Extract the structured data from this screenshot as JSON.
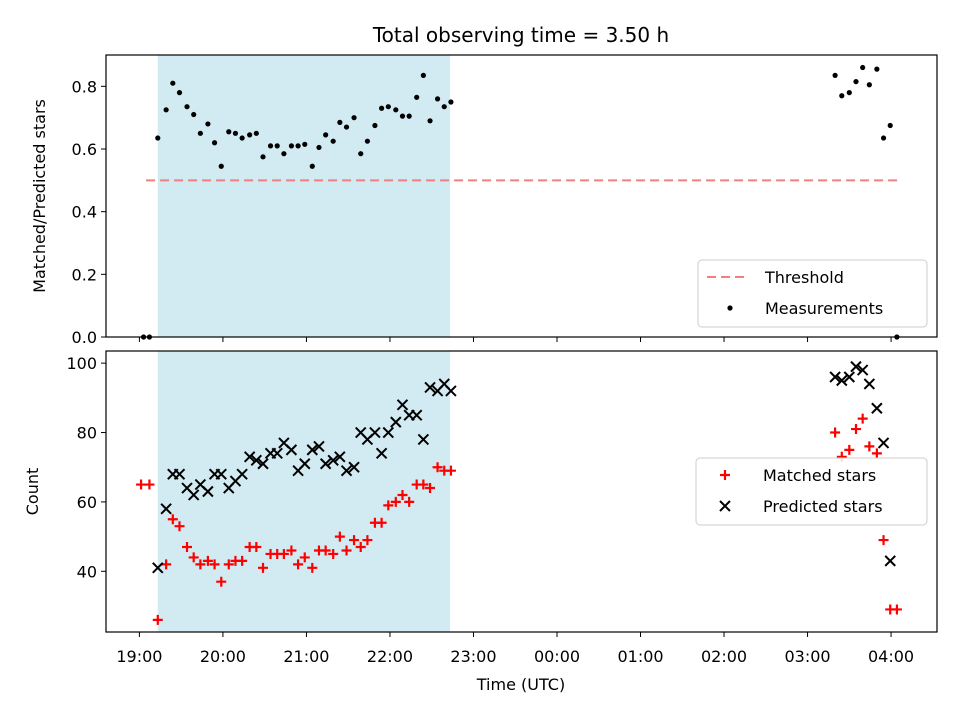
{
  "chart_data": {
    "type": "scatter",
    "title": "Total observing time = 3.50 h",
    "xlabel": "Time (UTC)",
    "x_ticks": [
      "19:00",
      "20:00",
      "21:00",
      "22:00",
      "23:00",
      "00:00",
      "01:00",
      "02:00",
      "03:00",
      "04:00"
    ],
    "x_range_hours": [
      18.6,
      28.55
    ],
    "observing_window_hours": [
      19.22,
      22.72
    ],
    "window_color": "#add8e6",
    "panels": [
      {
        "id": "ratio",
        "ylabel": "Matched/Predicted stars",
        "ylim": [
          0,
          0.9
        ],
        "y_ticks": [
          0.0,
          0.2,
          0.4,
          0.6,
          0.8
        ],
        "legend": {
          "placement": "lower right",
          "entries": [
            "Threshold",
            "Measurements"
          ]
        },
        "threshold": {
          "name": "Threshold",
          "value": 0.5,
          "x_start": 19.08,
          "x_end": 28.08,
          "color": "#f08080",
          "style": "dashed"
        },
        "series": [
          {
            "name": "Measurements",
            "marker": "dot",
            "color": "#000000",
            "points": [
              [
                19.05,
                0.0
              ],
              [
                19.12,
                0.0
              ],
              [
                19.22,
                0.635
              ],
              [
                19.32,
                0.725
              ],
              [
                19.4,
                0.81
              ],
              [
                19.48,
                0.78
              ],
              [
                19.57,
                0.735
              ],
              [
                19.65,
                0.71
              ],
              [
                19.73,
                0.65
              ],
              [
                19.82,
                0.68
              ],
              [
                19.9,
                0.62
              ],
              [
                19.98,
                0.545
              ],
              [
                20.07,
                0.655
              ],
              [
                20.15,
                0.65
              ],
              [
                20.23,
                0.635
              ],
              [
                20.32,
                0.645
              ],
              [
                20.4,
                0.65
              ],
              [
                20.48,
                0.575
              ],
              [
                20.57,
                0.61
              ],
              [
                20.65,
                0.61
              ],
              [
                20.73,
                0.585
              ],
              [
                20.82,
                0.61
              ],
              [
                20.9,
                0.61
              ],
              [
                20.98,
                0.615
              ],
              [
                21.07,
                0.545
              ],
              [
                21.15,
                0.605
              ],
              [
                21.23,
                0.645
              ],
              [
                21.32,
                0.625
              ],
              [
                21.4,
                0.685
              ],
              [
                21.48,
                0.67
              ],
              [
                21.57,
                0.7
              ],
              [
                21.65,
                0.585
              ],
              [
                21.73,
                0.625
              ],
              [
                21.82,
                0.675
              ],
              [
                21.9,
                0.73
              ],
              [
                21.98,
                0.735
              ],
              [
                22.07,
                0.725
              ],
              [
                22.15,
                0.705
              ],
              [
                22.23,
                0.705
              ],
              [
                22.32,
                0.765
              ],
              [
                22.4,
                0.835
              ],
              [
                22.48,
                0.69
              ],
              [
                22.57,
                0.76
              ],
              [
                22.65,
                0.735
              ],
              [
                22.73,
                0.75
              ],
              [
                27.33,
                0.835
              ],
              [
                27.41,
                0.77
              ],
              [
                27.5,
                0.78
              ],
              [
                27.58,
                0.815
              ],
              [
                27.66,
                0.86
              ],
              [
                27.74,
                0.805
              ],
              [
                27.83,
                0.855
              ],
              [
                27.91,
                0.635
              ],
              [
                27.99,
                0.675
              ],
              [
                28.07,
                0.0
              ]
            ]
          }
        ]
      },
      {
        "id": "counts",
        "ylabel": "Count",
        "ylim": [
          22.5,
          103.5
        ],
        "y_ticks": [
          40,
          60,
          80,
          100
        ],
        "legend": {
          "placement": "center right",
          "entries": [
            "Matched stars",
            "Predicted stars"
          ]
        },
        "series": [
          {
            "name": "Matched stars",
            "marker": "plus",
            "color": "#ff0000",
            "points": [
              [
                19.02,
                65
              ],
              [
                19.12,
                65
              ],
              [
                19.22,
                26
              ],
              [
                19.32,
                42
              ],
              [
                19.4,
                55
              ],
              [
                19.48,
                53
              ],
              [
                19.57,
                47
              ],
              [
                19.65,
                44
              ],
              [
                19.73,
                42
              ],
              [
                19.82,
                43
              ],
              [
                19.9,
                42
              ],
              [
                19.98,
                37
              ],
              [
                20.07,
                42
              ],
              [
                20.15,
                43
              ],
              [
                20.23,
                43
              ],
              [
                20.32,
                47
              ],
              [
                20.4,
                47
              ],
              [
                20.48,
                41
              ],
              [
                20.57,
                45
              ],
              [
                20.65,
                45
              ],
              [
                20.73,
                45
              ],
              [
                20.82,
                46
              ],
              [
                20.9,
                42
              ],
              [
                20.98,
                44
              ],
              [
                21.07,
                41
              ],
              [
                21.15,
                46
              ],
              [
                21.23,
                46
              ],
              [
                21.32,
                45
              ],
              [
                21.4,
                50
              ],
              [
                21.48,
                46
              ],
              [
                21.57,
                49
              ],
              [
                21.65,
                47
              ],
              [
                21.73,
                49
              ],
              [
                21.82,
                54
              ],
              [
                21.9,
                54
              ],
              [
                21.98,
                59
              ],
              [
                22.07,
                60
              ],
              [
                22.15,
                62
              ],
              [
                22.23,
                60
              ],
              [
                22.32,
                65
              ],
              [
                22.4,
                65
              ],
              [
                22.48,
                64
              ],
              [
                22.57,
                70
              ],
              [
                22.65,
                69
              ],
              [
                22.73,
                69
              ],
              [
                27.33,
                80
              ],
              [
                27.41,
                73
              ],
              [
                27.5,
                75
              ],
              [
                27.58,
                81
              ],
              [
                27.66,
                84
              ],
              [
                27.74,
                76
              ],
              [
                27.83,
                74
              ],
              [
                27.91,
                49
              ],
              [
                27.99,
                29
              ],
              [
                28.07,
                29
              ]
            ]
          },
          {
            "name": "Predicted stars",
            "marker": "x",
            "color": "#000000",
            "points": [
              [
                19.22,
                41
              ],
              [
                19.32,
                58
              ],
              [
                19.4,
                68
              ],
              [
                19.48,
                68
              ],
              [
                19.57,
                64
              ],
              [
                19.65,
                62
              ],
              [
                19.73,
                65
              ],
              [
                19.82,
                63
              ],
              [
                19.9,
                68
              ],
              [
                19.98,
                68
              ],
              [
                20.07,
                64
              ],
              [
                20.15,
                66
              ],
              [
                20.23,
                68
              ],
              [
                20.32,
                73
              ],
              [
                20.4,
                72
              ],
              [
                20.48,
                71
              ],
              [
                20.57,
                74
              ],
              [
                20.65,
                74
              ],
              [
                20.73,
                77
              ],
              [
                20.82,
                75
              ],
              [
                20.9,
                69
              ],
              [
                20.98,
                71
              ],
              [
                21.07,
                75
              ],
              [
                21.15,
                76
              ],
              [
                21.23,
                71
              ],
              [
                21.32,
                72
              ],
              [
                21.4,
                73
              ],
              [
                21.48,
                69
              ],
              [
                21.57,
                70
              ],
              [
                21.65,
                80
              ],
              [
                21.73,
                78
              ],
              [
                21.82,
                80
              ],
              [
                21.9,
                74
              ],
              [
                21.98,
                80
              ],
              [
                22.07,
                83
              ],
              [
                22.15,
                88
              ],
              [
                22.23,
                85
              ],
              [
                22.32,
                85
              ],
              [
                22.4,
                78
              ],
              [
                22.48,
                93
              ],
              [
                22.57,
                92
              ],
              [
                22.65,
                94
              ],
              [
                22.73,
                92
              ],
              [
                27.33,
                96
              ],
              [
                27.41,
                95
              ],
              [
                27.5,
                96
              ],
              [
                27.58,
                99
              ],
              [
                27.66,
                98
              ],
              [
                27.74,
                94
              ],
              [
                27.83,
                87
              ],
              [
                27.91,
                77
              ],
              [
                27.99,
                43
              ]
            ]
          }
        ]
      }
    ]
  }
}
